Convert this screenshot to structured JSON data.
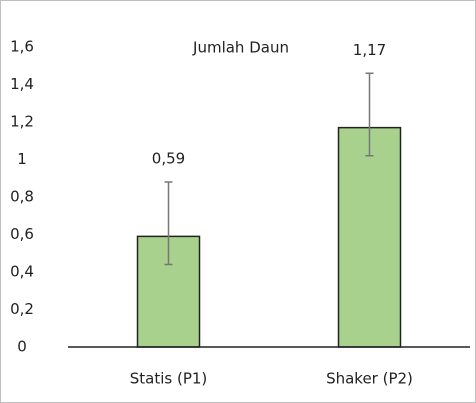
{
  "chart_data": {
    "type": "bar",
    "title": "Jumlah Daun",
    "categories": [
      "Statis (P1)",
      "Shaker (P2)"
    ],
    "values": [
      0.59,
      1.17
    ],
    "value_labels": [
      "0,59",
      "1,17"
    ],
    "errors": [
      {
        "minus": 0.15,
        "plus": 0.29
      },
      {
        "minus": 0.15,
        "plus": 0.29
      }
    ],
    "color": "#a9d18e",
    "ylim": [
      0,
      1.6
    ],
    "yticks": [
      0,
      {
        "value": 0.2,
        "label": "0,2"
      },
      {
        "value": 0.4,
        "label": "0,4"
      },
      {
        "value": 0.6,
        "label": "0,6"
      },
      {
        "value": 0.8,
        "label": "0,8"
      },
      1,
      {
        "value": 1.2,
        "label": "1,2"
      },
      {
        "value": 1.4,
        "label": "1,4"
      },
      {
        "value": 1.6,
        "label": "1,6"
      }
    ],
    "grid": false
  }
}
